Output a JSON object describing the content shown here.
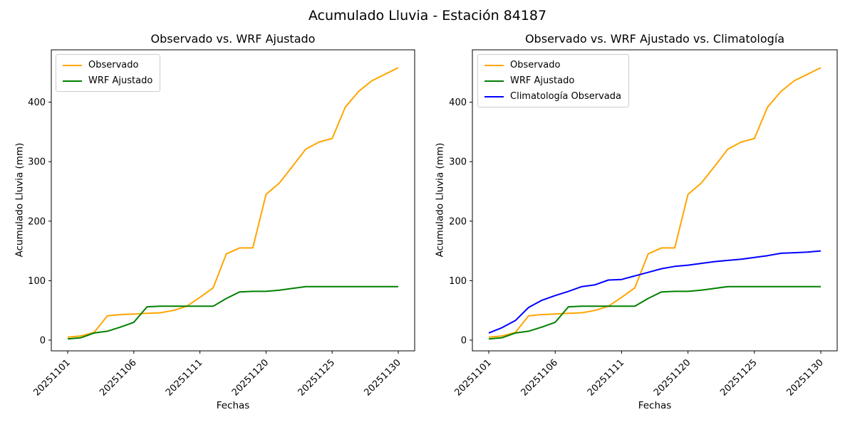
{
  "figure": {
    "suptitle": "Acumulado Lluvia - Estación 84187",
    "background": "#ffffff",
    "text_color": "#000000"
  },
  "chart_data": [
    {
      "type": "line",
      "title": "Observado vs. WRF Ajustado",
      "xlabel": "Fechas",
      "ylabel": "Acumulado Lluvia (mm)",
      "x_index": [
        0,
        1,
        2,
        3,
        4,
        5,
        6,
        7,
        8,
        9,
        10,
        11,
        12,
        13,
        14,
        15,
        16,
        17,
        18,
        19,
        20,
        21,
        22,
        23,
        24,
        25
      ],
      "xtick_positions": [
        0,
        5,
        10,
        15,
        20,
        25
      ],
      "xtick_labels": [
        "20251101",
        "20251106",
        "20251111",
        "20251120",
        "20251125",
        "20251130"
      ],
      "yticks": [
        0,
        100,
        200,
        300,
        400
      ],
      "ylim": [
        -18,
        488
      ],
      "grid": false,
      "legend_position": "upper-left",
      "series": [
        {
          "name": "Observado",
          "color": "#FFA500",
          "values": [
            5,
            7,
            13,
            41,
            43,
            44,
            45,
            46,
            50,
            57,
            72,
            88,
            145,
            155,
            155,
            245,
            264,
            292,
            321,
            333,
            339,
            392,
            418,
            436,
            447,
            458
          ]
        },
        {
          "name": "WRF Ajustado",
          "color": "#008000",
          "values": [
            2,
            4,
            12,
            15,
            22,
            30,
            56,
            57,
            57,
            57,
            57,
            57,
            70,
            81,
            82,
            82,
            84,
            87,
            90,
            90,
            90,
            90,
            90,
            90,
            90,
            90
          ]
        }
      ]
    },
    {
      "type": "line",
      "title": "Observado vs. WRF Ajustado vs. Climatología",
      "xlabel": "Fechas",
      "ylabel": "Acumulado Lluvia (mm)",
      "x_index": [
        0,
        1,
        2,
        3,
        4,
        5,
        6,
        7,
        8,
        9,
        10,
        11,
        12,
        13,
        14,
        15,
        16,
        17,
        18,
        19,
        20,
        21,
        22,
        23,
        24,
        25
      ],
      "xtick_positions": [
        0,
        5,
        10,
        15,
        20,
        25
      ],
      "xtick_labels": [
        "20251101",
        "20251106",
        "20251111",
        "20251120",
        "20251125",
        "20251130"
      ],
      "yticks": [
        0,
        100,
        200,
        300,
        400
      ],
      "ylim": [
        -18,
        488
      ],
      "grid": false,
      "legend_position": "upper-left",
      "series": [
        {
          "name": "Observado",
          "color": "#FFA500",
          "values": [
            5,
            7,
            13,
            41,
            43,
            44,
            45,
            46,
            50,
            57,
            72,
            88,
            145,
            155,
            155,
            245,
            264,
            292,
            321,
            333,
            339,
            392,
            418,
            436,
            447,
            458
          ]
        },
        {
          "name": "WRF Ajustado",
          "color": "#008000",
          "values": [
            2,
            4,
            12,
            15,
            22,
            30,
            56,
            57,
            57,
            57,
            57,
            57,
            70,
            81,
            82,
            82,
            84,
            87,
            90,
            90,
            90,
            90,
            90,
            90,
            90,
            90
          ]
        },
        {
          "name": "Climatología Observada",
          "color": "#0000FF",
          "values": [
            12,
            21,
            33,
            55,
            67,
            75,
            82,
            90,
            93,
            101,
            102,
            108,
            114,
            120,
            124,
            126,
            129,
            132,
            134,
            136,
            139,
            142,
            146,
            147,
            148,
            150
          ]
        }
      ]
    }
  ]
}
